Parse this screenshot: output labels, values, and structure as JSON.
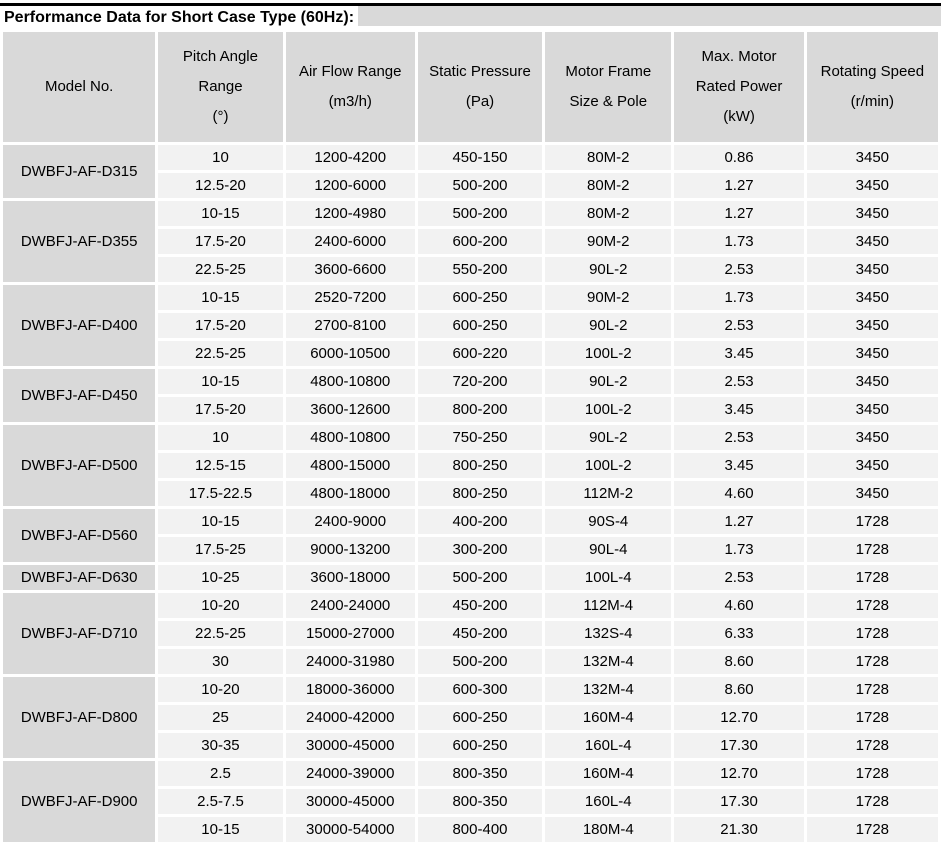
{
  "title": "Performance Data for Short Case Type (60Hz):",
  "colors": {
    "header_bg": "#d9d9d9",
    "row_bg": "#f2f2f2",
    "top_rule": "#000000",
    "text": "#000000",
    "background": "#ffffff"
  },
  "table": {
    "headers": [
      {
        "lines": [
          "Model No."
        ]
      },
      {
        "lines": [
          "Pitch Angle",
          "Range",
          "(°)"
        ]
      },
      {
        "lines": [
          "Air Flow Range",
          "(m3/h)"
        ]
      },
      {
        "lines": [
          "Static Pressure",
          "(Pa)"
        ]
      },
      {
        "lines": [
          "Motor Frame",
          "Size & Pole"
        ]
      },
      {
        "lines": [
          "Max. Motor",
          "Rated Power",
          "(kW)"
        ]
      },
      {
        "lines": [
          "Rotating Speed",
          "(r/min)"
        ]
      }
    ],
    "column_keys": [
      "pitch_angle_range_deg",
      "air_flow_range_m3h",
      "static_pressure_pa",
      "motor_frame_size_pole",
      "max_motor_rated_power_kw",
      "rotating_speed_rmin"
    ],
    "groups": [
      {
        "model": "DWBFJ-AF-D315",
        "rows": [
          [
            "10",
            "1200-4200",
            "450-150",
            "80M-2",
            "0.86",
            "3450"
          ],
          [
            "12.5-20",
            "1200-6000",
            "500-200",
            "80M-2",
            "1.27",
            "3450"
          ]
        ]
      },
      {
        "model": "DWBFJ-AF-D355",
        "rows": [
          [
            "10-15",
            "1200-4980",
            "500-200",
            "80M-2",
            "1.27",
            "3450"
          ],
          [
            "17.5-20",
            "2400-6000",
            "600-200",
            "90M-2",
            "1.73",
            "3450"
          ],
          [
            "22.5-25",
            "3600-6600",
            "550-200",
            "90L-2",
            "2.53",
            "3450"
          ]
        ]
      },
      {
        "model": "DWBFJ-AF-D400",
        "rows": [
          [
            "10-15",
            "2520-7200",
            "600-250",
            "90M-2",
            "1.73",
            "3450"
          ],
          [
            "17.5-20",
            "2700-8100",
            "600-250",
            "90L-2",
            "2.53",
            "3450"
          ],
          [
            "22.5-25",
            "6000-10500",
            "600-220",
            "100L-2",
            "3.45",
            "3450"
          ]
        ]
      },
      {
        "model": "DWBFJ-AF-D450",
        "rows": [
          [
            "10-15",
            "4800-10800",
            "720-200",
            "90L-2",
            "2.53",
            "3450"
          ],
          [
            "17.5-20",
            "3600-12600",
            "800-200",
            "100L-2",
            "3.45",
            "3450"
          ]
        ]
      },
      {
        "model": "DWBFJ-AF-D500",
        "rows": [
          [
            "10",
            "4800-10800",
            "750-250",
            "90L-2",
            "2.53",
            "3450"
          ],
          [
            "12.5-15",
            "4800-15000",
            "800-250",
            "100L-2",
            "3.45",
            "3450"
          ],
          [
            "17.5-22.5",
            "4800-18000",
            "800-250",
            "112M-2",
            "4.60",
            "3450"
          ]
        ]
      },
      {
        "model": "DWBFJ-AF-D560",
        "rows": [
          [
            "10-15",
            "2400-9000",
            "400-200",
            "90S-4",
            "1.27",
            "1728"
          ],
          [
            "17.5-25",
            "9000-13200",
            "300-200",
            "90L-4",
            "1.73",
            "1728"
          ]
        ]
      },
      {
        "model": "DWBFJ-AF-D630",
        "rows": [
          [
            "10-25",
            "3600-18000",
            "500-200",
            "100L-4",
            "2.53",
            "1728"
          ]
        ]
      },
      {
        "model": "DWBFJ-AF-D710",
        "rows": [
          [
            "10-20",
            "2400-24000",
            "450-200",
            "112M-4",
            "4.60",
            "1728"
          ],
          [
            "22.5-25",
            "15000-27000",
            "450-200",
            "132S-4",
            "6.33",
            "1728"
          ],
          [
            "30",
            "24000-31980",
            "500-200",
            "132M-4",
            "8.60",
            "1728"
          ]
        ]
      },
      {
        "model": "DWBFJ-AF-D800",
        "rows": [
          [
            "10-20",
            "18000-36000",
            "600-300",
            "132M-4",
            "8.60",
            "1728"
          ],
          [
            "25",
            "24000-42000",
            "600-250",
            "160M-4",
            "12.70",
            "1728"
          ],
          [
            "30-35",
            "30000-45000",
            "600-250",
            "160L-4",
            "17.30",
            "1728"
          ]
        ]
      },
      {
        "model": "DWBFJ-AF-D900",
        "rows": [
          [
            "2.5",
            "24000-39000",
            "800-350",
            "160M-4",
            "12.70",
            "1728"
          ],
          [
            "2.5-7.5",
            "30000-45000",
            "800-350",
            "160L-4",
            "17.30",
            "1728"
          ],
          [
            "10-15",
            "30000-54000",
            "800-400",
            "180M-4",
            "21.30",
            "1728"
          ]
        ]
      }
    ]
  }
}
